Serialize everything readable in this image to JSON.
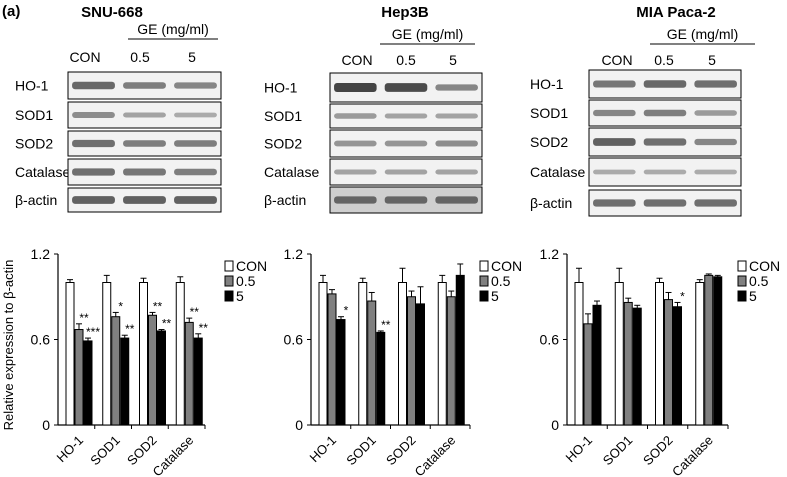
{
  "panel_label": "(a)",
  "treatment_label": "GE (mg/ml)",
  "lane_labels": [
    "CON",
    "0.5",
    "5"
  ],
  "blot_labels": [
    "HO-1",
    "SOD1",
    "SOD2",
    "Catalase",
    "β-actin"
  ],
  "ylabel": "Relative expression to β-actin",
  "colors": {
    "CON": "#ffffff",
    "0.5": "#808080",
    "5": "#000000",
    "axis": "#000000",
    "band": "#3a3a3a"
  },
  "chart_data": [
    {
      "type": "bar",
      "title": "SNU-668",
      "categories": [
        "HO-1",
        "SOD1",
        "SOD2",
        "Catalase"
      ],
      "series": [
        {
          "name": "CON",
          "values": [
            1.0,
            1.0,
            1.0,
            1.0
          ],
          "errors": [
            0.02,
            0.05,
            0.03,
            0.04
          ]
        },
        {
          "name": "0.5",
          "values": [
            0.67,
            0.76,
            0.77,
            0.72
          ],
          "errors": [
            0.04,
            0.03,
            0.02,
            0.03
          ]
        },
        {
          "name": "5",
          "values": [
            0.59,
            0.61,
            0.66,
            0.61
          ],
          "errors": [
            0.02,
            0.02,
            0.01,
            0.03
          ]
        }
      ],
      "annotations": [
        [
          "**",
          "***"
        ],
        [
          "*",
          "**"
        ],
        [
          "**",
          "**"
        ],
        [
          "**",
          "**"
        ]
      ],
      "yticks": [
        "0",
        "0.6",
        "1.2"
      ],
      "ylim": [
        0,
        1.2
      ],
      "legend": "top-right",
      "grid": false
    },
    {
      "type": "bar",
      "title": "Hep3B",
      "categories": [
        "HO-1",
        "SOD1",
        "SOD2",
        "Catalase"
      ],
      "series": [
        {
          "name": "CON",
          "values": [
            1.0,
            1.0,
            1.0,
            1.0
          ],
          "errors": [
            0.05,
            0.03,
            0.1,
            0.05
          ]
        },
        {
          "name": "0.5",
          "values": [
            0.92,
            0.87,
            0.9,
            0.9
          ],
          "errors": [
            0.03,
            0.06,
            0.04,
            0.04
          ]
        },
        {
          "name": "5",
          "values": [
            0.74,
            0.65,
            0.85,
            1.05
          ],
          "errors": [
            0.02,
            0.01,
            0.12,
            0.08
          ]
        }
      ],
      "annotations": [
        [
          "",
          "*"
        ],
        [
          "",
          "**"
        ],
        [
          "",
          ""
        ],
        [
          "",
          ""
        ]
      ],
      "yticks": [
        "0",
        "0.6",
        "1.2"
      ],
      "ylim": [
        0,
        1.2
      ],
      "legend": "top-right",
      "grid": false
    },
    {
      "type": "bar",
      "title": "MIA Paca-2",
      "categories": [
        "HO-1",
        "SOD1",
        "SOD2",
        "Catalase"
      ],
      "series": [
        {
          "name": "CON",
          "values": [
            1.0,
            1.0,
            1.0,
            1.0
          ],
          "errors": [
            0.1,
            0.1,
            0.03,
            0.02
          ]
        },
        {
          "name": "0.5",
          "values": [
            0.71,
            0.86,
            0.88,
            1.05
          ],
          "errors": [
            0.07,
            0.03,
            0.05,
            0.01
          ]
        },
        {
          "name": "5",
          "values": [
            0.84,
            0.82,
            0.83,
            1.04
          ],
          "errors": [
            0.03,
            0.02,
            0.03,
            0.01
          ]
        }
      ],
      "annotations": [
        [
          "",
          ""
        ],
        [
          "",
          ""
        ],
        [
          "",
          "*"
        ],
        [
          "",
          ""
        ]
      ],
      "yticks": [
        "0",
        "0.6",
        "1.2"
      ],
      "ylim": [
        0,
        1.2
      ],
      "legend": "top-right",
      "grid": false
    }
  ]
}
